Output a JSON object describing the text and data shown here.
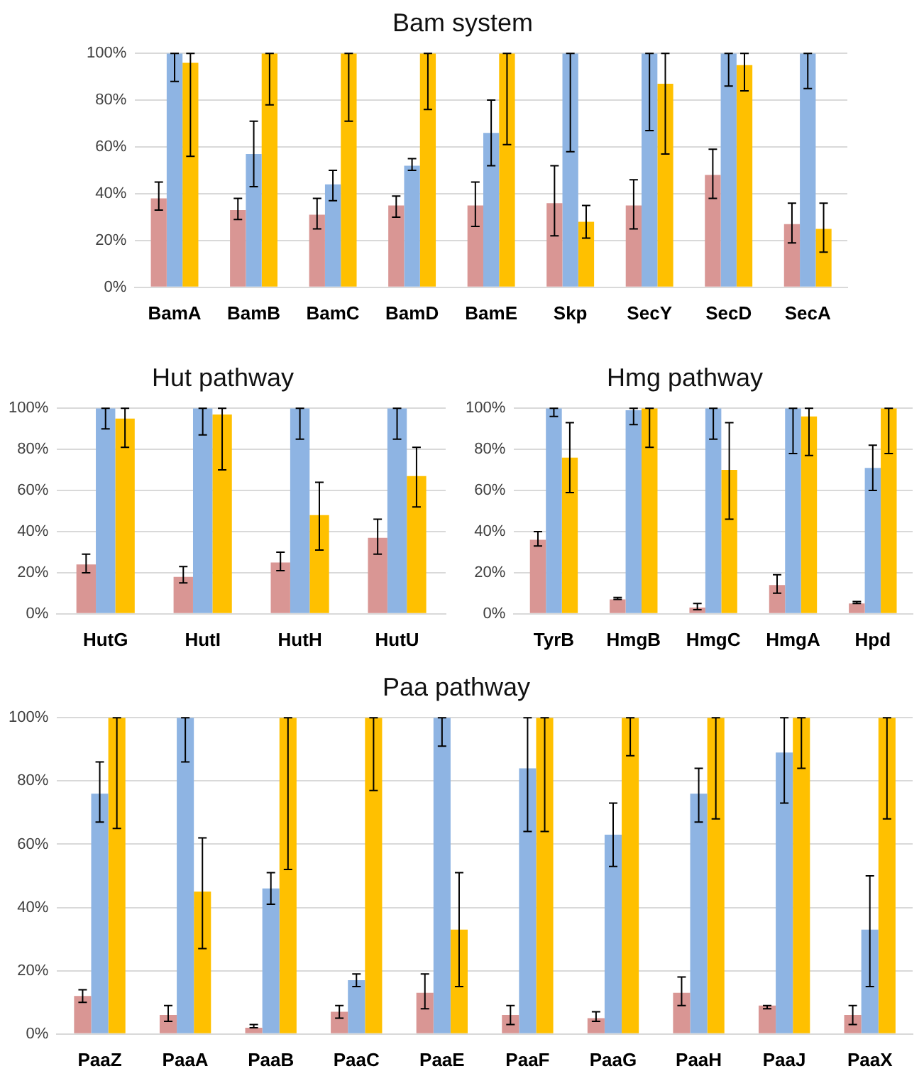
{
  "chart_data": [
    {
      "type": "bar",
      "title": "Bam system",
      "categories": [
        "BamA",
        "BamB",
        "BamC",
        "BamD",
        "BamE",
        "Skp",
        "SecY",
        "SecD",
        "SecA"
      ],
      "series": [
        {
          "color": "#d99694",
          "values": [
            38,
            33,
            31,
            35,
            35,
            36,
            35,
            48,
            27
          ],
          "errors": [
            [
              33,
              45
            ],
            [
              29,
              38
            ],
            [
              25,
              38
            ],
            [
              30,
              39
            ],
            [
              26,
              45
            ],
            [
              22,
              52
            ],
            [
              25,
              46
            ],
            [
              38,
              59
            ],
            [
              19,
              36
            ]
          ]
        },
        {
          "color": "#8eb4e3",
          "values": [
            100,
            57,
            44,
            52,
            66,
            100,
            100,
            100,
            100
          ],
          "errors": [
            [
              88,
              100
            ],
            [
              43,
              71
            ],
            [
              37,
              50
            ],
            [
              50,
              55
            ],
            [
              52,
              80
            ],
            [
              58,
              100
            ],
            [
              67,
              100
            ],
            [
              86,
              100
            ],
            [
              85,
              100
            ]
          ]
        },
        {
          "color": "#ffc000",
          "values": [
            96,
            100,
            100,
            100,
            100,
            28,
            87,
            95,
            25
          ],
          "errors": [
            [
              56,
              100
            ],
            [
              78,
              100
            ],
            [
              71,
              100
            ],
            [
              76,
              100
            ],
            [
              61,
              100
            ],
            [
              21,
              35
            ],
            [
              57,
              100
            ],
            [
              84,
              100
            ],
            [
              15,
              36
            ]
          ]
        }
      ],
      "ylim": [
        0,
        100
      ],
      "yticks": [
        {
          "value": 0,
          "label": "0%"
        },
        {
          "value": 20,
          "label": "20%"
        },
        {
          "value": 40,
          "label": "40%"
        },
        {
          "value": 60,
          "label": "60%"
        },
        {
          "value": 80,
          "label": "80%"
        },
        {
          "value": 100,
          "label": "100%"
        }
      ],
      "grid": "y",
      "legend": false
    },
    {
      "type": "bar",
      "title": "Hut pathway",
      "categories": [
        "HutG",
        "HutI",
        "HutH",
        "HutU"
      ],
      "series": [
        {
          "color": "#d99694",
          "values": [
            24,
            18,
            25,
            37
          ],
          "errors": [
            [
              20,
              29
            ],
            [
              15,
              23
            ],
            [
              21,
              30
            ],
            [
              29,
              46
            ]
          ]
        },
        {
          "color": "#8eb4e3",
          "values": [
            100,
            100,
            100,
            100
          ],
          "errors": [
            [
              90,
              100
            ],
            [
              87,
              100
            ],
            [
              85,
              100
            ],
            [
              85,
              100
            ]
          ]
        },
        {
          "color": "#ffc000",
          "values": [
            95,
            97,
            48,
            67
          ],
          "errors": [
            [
              81,
              100
            ],
            [
              70,
              100
            ],
            [
              31,
              64
            ],
            [
              52,
              81
            ]
          ]
        }
      ],
      "ylim": [
        0,
        100
      ],
      "yticks": [
        {
          "value": 0,
          "label": "0%"
        },
        {
          "value": 20,
          "label": "20%"
        },
        {
          "value": 40,
          "label": "40%"
        },
        {
          "value": 60,
          "label": "60%"
        },
        {
          "value": 80,
          "label": "80%"
        },
        {
          "value": 100,
          "label": "100%"
        }
      ],
      "grid": "y",
      "legend": false
    },
    {
      "type": "bar",
      "title": "Hmg pathway",
      "categories": [
        "TyrB",
        "HmgB",
        "HmgC",
        "HmgA",
        "Hpd"
      ],
      "series": [
        {
          "color": "#d99694",
          "values": [
            36,
            7,
            3,
            14,
            5
          ],
          "errors": [
            [
              33,
              40
            ],
            [
              7,
              8
            ],
            [
              2,
              5
            ],
            [
              10,
              19
            ],
            [
              5,
              6
            ]
          ]
        },
        {
          "color": "#8eb4e3",
          "values": [
            100,
            99,
            100,
            100,
            71
          ],
          "errors": [
            [
              96,
              100
            ],
            [
              92,
              100
            ],
            [
              85,
              100
            ],
            [
              78,
              100
            ],
            [
              60,
              82
            ]
          ]
        },
        {
          "color": "#ffc000",
          "values": [
            76,
            100,
            70,
            96,
            100
          ],
          "errors": [
            [
              59,
              93
            ],
            [
              81,
              100
            ],
            [
              46,
              93
            ],
            [
              77,
              100
            ],
            [
              78,
              100
            ]
          ]
        }
      ],
      "ylim": [
        0,
        100
      ],
      "yticks": [
        {
          "value": 0,
          "label": "0%"
        },
        {
          "value": 20,
          "label": "20%"
        },
        {
          "value": 40,
          "label": "40%"
        },
        {
          "value": 60,
          "label": "60%"
        },
        {
          "value": 80,
          "label": "80%"
        },
        {
          "value": 100,
          "label": "100%"
        }
      ],
      "grid": "y",
      "legend": false
    },
    {
      "type": "bar",
      "title": "Paa pathway",
      "categories": [
        "PaaZ",
        "PaaA",
        "PaaB",
        "PaaC",
        "PaaE",
        "PaaF",
        "PaaG",
        "PaaH",
        "PaaJ",
        "PaaX"
      ],
      "series": [
        {
          "color": "#d99694",
          "values": [
            12,
            6,
            2,
            7,
            13,
            6,
            5,
            13,
            9,
            6
          ],
          "errors": [
            [
              10,
              14
            ],
            [
              4,
              9
            ],
            [
              2,
              3
            ],
            [
              5,
              9
            ],
            [
              8,
              19
            ],
            [
              3,
              9
            ],
            [
              4,
              7
            ],
            [
              9,
              18
            ],
            [
              8,
              9
            ],
            [
              3,
              9
            ]
          ]
        },
        {
          "color": "#8eb4e3",
          "values": [
            76,
            100,
            46,
            17,
            100,
            84,
            63,
            76,
            89,
            33
          ],
          "errors": [
            [
              67,
              86
            ],
            [
              86,
              100
            ],
            [
              41,
              51
            ],
            [
              15,
              19
            ],
            [
              91,
              100
            ],
            [
              64,
              100
            ],
            [
              53,
              73
            ],
            [
              67,
              84
            ],
            [
              73,
              100
            ],
            [
              15,
              50
            ]
          ]
        },
        {
          "color": "#ffc000",
          "values": [
            100,
            45,
            100,
            100,
            33,
            100,
            100,
            100,
            100,
            100
          ],
          "errors": [
            [
              65,
              100
            ],
            [
              27,
              62
            ],
            [
              52,
              100
            ],
            [
              77,
              100
            ],
            [
              15,
              51
            ],
            [
              64,
              100
            ],
            [
              88,
              100
            ],
            [
              68,
              100
            ],
            [
              84,
              100
            ],
            [
              68,
              100
            ]
          ]
        }
      ],
      "ylim": [
        0,
        100
      ],
      "yticks": [
        {
          "value": 0,
          "label": "0%"
        },
        {
          "value": 20,
          "label": "20%"
        },
        {
          "value": 40,
          "label": "40%"
        },
        {
          "value": 60,
          "label": "60%"
        },
        {
          "value": 80,
          "label": "80%"
        },
        {
          "value": 100,
          "label": "100%"
        }
      ],
      "grid": "y",
      "legend": false
    }
  ]
}
